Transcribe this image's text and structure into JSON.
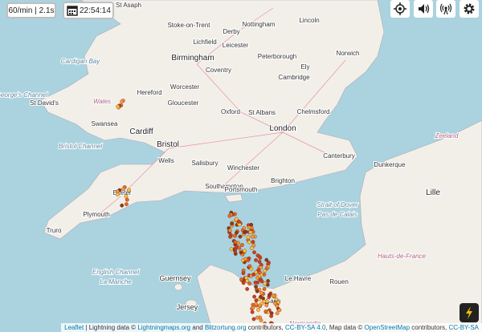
{
  "controls": {
    "rate": "60/min | 2.1s",
    "time": "22:54:14"
  },
  "map": {
    "labels": [
      {
        "text": "St Asaph",
        "kind": "town"
      },
      {
        "text": "Stoke-on-Trent",
        "kind": "town"
      },
      {
        "text": "Derby",
        "kind": "town"
      },
      {
        "text": "Nottingham",
        "kind": "town"
      },
      {
        "text": "Lincoln",
        "kind": "town"
      },
      {
        "text": "Lichfield",
        "kind": "town"
      },
      {
        "text": "Leicester",
        "kind": "town"
      },
      {
        "text": "Peterborough",
        "kind": "town"
      },
      {
        "text": "Norwich",
        "kind": "town"
      },
      {
        "text": "Birmingham",
        "kind": "city"
      },
      {
        "text": "Coventry",
        "kind": "town"
      },
      {
        "text": "Ely",
        "kind": "town"
      },
      {
        "text": "Cambridge",
        "kind": "town"
      },
      {
        "text": "Worcester",
        "kind": "town"
      },
      {
        "text": "Hereford",
        "kind": "town"
      },
      {
        "text": "Wales",
        "kind": "region"
      },
      {
        "text": "St David's",
        "kind": "town"
      },
      {
        "text": "Gloucester",
        "kind": "town"
      },
      {
        "text": "Oxford",
        "kind": "town"
      },
      {
        "text": "St Albans",
        "kind": "town"
      },
      {
        "text": "Chelmsford",
        "kind": "town"
      },
      {
        "text": "Swansea",
        "kind": "town"
      },
      {
        "text": "Cardiff",
        "kind": "city"
      },
      {
        "text": "London",
        "kind": "city"
      },
      {
        "text": "Bristol",
        "kind": "city"
      },
      {
        "text": "Canterbury",
        "kind": "town"
      },
      {
        "text": "Bristol Channel",
        "kind": "sea"
      },
      {
        "text": "Wells",
        "kind": "town"
      },
      {
        "text": "Salisbury",
        "kind": "town"
      },
      {
        "text": "Winchester",
        "kind": "town"
      },
      {
        "text": "Dunkerque",
        "kind": "town"
      },
      {
        "text": "Southampton",
        "kind": "town"
      },
      {
        "text": "Portsmouth",
        "kind": "town"
      },
      {
        "text": "Brighton",
        "kind": "town"
      },
      {
        "text": "Exeter",
        "kind": "town"
      },
      {
        "text": "Plymouth",
        "kind": "town"
      },
      {
        "text": "Truro",
        "kind": "town"
      },
      {
        "text": "Strait of Dover",
        "kind": "sea"
      },
      {
        "text": "Pas de Calais",
        "kind": "sea"
      },
      {
        "text": "Lille",
        "kind": "city"
      },
      {
        "text": "English Channel",
        "kind": "sea"
      },
      {
        "text": "La Manche",
        "kind": "sea"
      },
      {
        "text": "Guernsey",
        "kind": "island"
      },
      {
        "text": "Jersey",
        "kind": "island"
      },
      {
        "text": "Le Havre",
        "kind": "town"
      },
      {
        "text": "Rouen",
        "kind": "town"
      },
      {
        "text": "Caen",
        "kind": "town"
      },
      {
        "text": "Hauts-de-France",
        "kind": "region"
      },
      {
        "text": "Zeeland",
        "kind": "region"
      },
      {
        "text": "St George's Channel",
        "kind": "sea"
      },
      {
        "text": "Cardigan Bay",
        "kind": "sea"
      },
      {
        "text": "Normandie",
        "kind": "region"
      }
    ]
  },
  "attribution": [
    {
      "text": "Leaflet",
      "link": true
    },
    {
      "text": " | Lightning data © ",
      "link": false
    },
    {
      "text": "Lightningmaps.org",
      "link": true
    },
    {
      "text": " and ",
      "link": false
    },
    {
      "text": "Blitzortung.org",
      "link": true
    },
    {
      "text": " contributors, ",
      "link": false
    },
    {
      "text": "CC-BY-SA 4.0",
      "link": true
    },
    {
      "text": ", Map data © ",
      "link": false
    },
    {
      "text": "OpenStreetMap",
      "link": true
    },
    {
      "text": " contributors, ",
      "link": false
    },
    {
      "text": "CC-BY-SA",
      "link": true
    }
  ]
}
